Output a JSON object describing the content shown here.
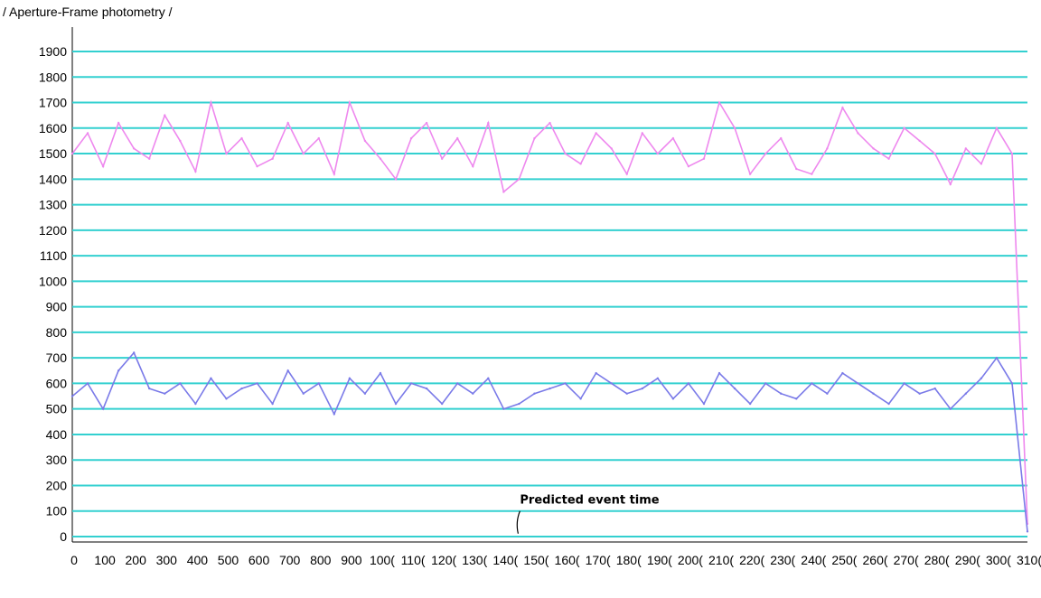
{
  "window": {
    "title": "/ Aperture-Frame photometry /"
  },
  "chart_data": {
    "type": "line",
    "title": "/ Aperture-Frame photometry /",
    "xlabel": "",
    "ylabel": "",
    "xlim": [
      0,
      3100
    ],
    "ylim": [
      0,
      1900
    ],
    "grid": true,
    "grid_color": "#33d0d0",
    "x_ticks": [
      0,
      100,
      200,
      300,
      400,
      500,
      600,
      700,
      800,
      900,
      1000,
      1100,
      1200,
      1300,
      1400,
      1500,
      1600,
      1700,
      1800,
      1900,
      2000,
      2100,
      2200,
      2300,
      2400,
      2500,
      2600,
      2700,
      2800,
      2900,
      3000,
      3100
    ],
    "x_tick_labels": [
      "0",
      "100",
      "200",
      "300",
      "400",
      "500",
      "600",
      "700",
      "800",
      "900",
      "100(",
      "110(",
      "120(",
      "130(",
      "140(",
      "150(",
      "160(",
      "170(",
      "180(",
      "190(",
      "200(",
      "210(",
      "220(",
      "230(",
      "240(",
      "250(",
      "260(",
      "270(",
      "280(",
      "290(",
      "300(",
      "310("
    ],
    "y_ticks": [
      0,
      100,
      200,
      300,
      400,
      500,
      600,
      700,
      800,
      900,
      1000,
      1100,
      1200,
      1300,
      1400,
      1500,
      1600,
      1700,
      1800,
      1900
    ],
    "annotations": [
      {
        "text": "Predicted event time",
        "x": 1450,
        "y": 100
      }
    ],
    "series": [
      {
        "color": "#ee88ee",
        "x": [
          0,
          50,
          100,
          150,
          200,
          250,
          300,
          350,
          400,
          450,
          500,
          550,
          600,
          650,
          700,
          750,
          800,
          850,
          900,
          950,
          1000,
          1050,
          1100,
          1150,
          1200,
          1250,
          1300,
          1350,
          1400,
          1450,
          1500,
          1550,
          1600,
          1650,
          1700,
          1750,
          1800,
          1850,
          1900,
          1950,
          2000,
          2050,
          2100,
          2150,
          2200,
          2250,
          2300,
          2350,
          2400,
          2450,
          2500,
          2550,
          2600,
          2650,
          2700,
          2750,
          2800,
          2850,
          2900,
          2950,
          3000,
          3050,
          3100
        ],
        "values": [
          1500,
          1580,
          1450,
          1620,
          1520,
          1480,
          1650,
          1550,
          1430,
          1700,
          1500,
          1560,
          1450,
          1480,
          1620,
          1500,
          1560,
          1420,
          1700,
          1550,
          1480,
          1400,
          1560,
          1620,
          1480,
          1560,
          1450,
          1620,
          1350,
          1400,
          1560,
          1620,
          1500,
          1460,
          1580,
          1520,
          1420,
          1580,
          1500,
          1560,
          1450,
          1480,
          1700,
          1600,
          1420,
          1500,
          1560,
          1440,
          1420,
          1520,
          1680,
          1580,
          1520,
          1480,
          1600,
          1550,
          1500,
          1380,
          1520,
          1460,
          1600,
          1500,
          50
        ]
      },
      {
        "color": "#7a7ae8",
        "x": [
          0,
          50,
          100,
          150,
          200,
          250,
          300,
          350,
          400,
          450,
          500,
          550,
          600,
          650,
          700,
          750,
          800,
          850,
          900,
          950,
          1000,
          1050,
          1100,
          1150,
          1200,
          1250,
          1300,
          1350,
          1400,
          1450,
          1500,
          1550,
          1600,
          1650,
          1700,
          1750,
          1800,
          1850,
          1900,
          1950,
          2000,
          2050,
          2100,
          2150,
          2200,
          2250,
          2300,
          2350,
          2400,
          2450,
          2500,
          2550,
          2600,
          2650,
          2700,
          2750,
          2800,
          2850,
          2900,
          2950,
          3000,
          3050,
          3100
        ],
        "values": [
          550,
          600,
          500,
          650,
          720,
          580,
          560,
          600,
          520,
          620,
          540,
          580,
          600,
          520,
          650,
          560,
          600,
          480,
          620,
          560,
          640,
          520,
          600,
          580,
          520,
          600,
          560,
          620,
          500,
          520,
          560,
          580,
          600,
          540,
          640,
          600,
          560,
          580,
          620,
          540,
          600,
          520,
          640,
          580,
          520,
          600,
          560,
          540,
          600,
          560,
          640,
          600,
          560,
          520,
          600,
          560,
          580,
          500,
          560,
          620,
          700,
          600,
          20
        ]
      }
    ]
  }
}
